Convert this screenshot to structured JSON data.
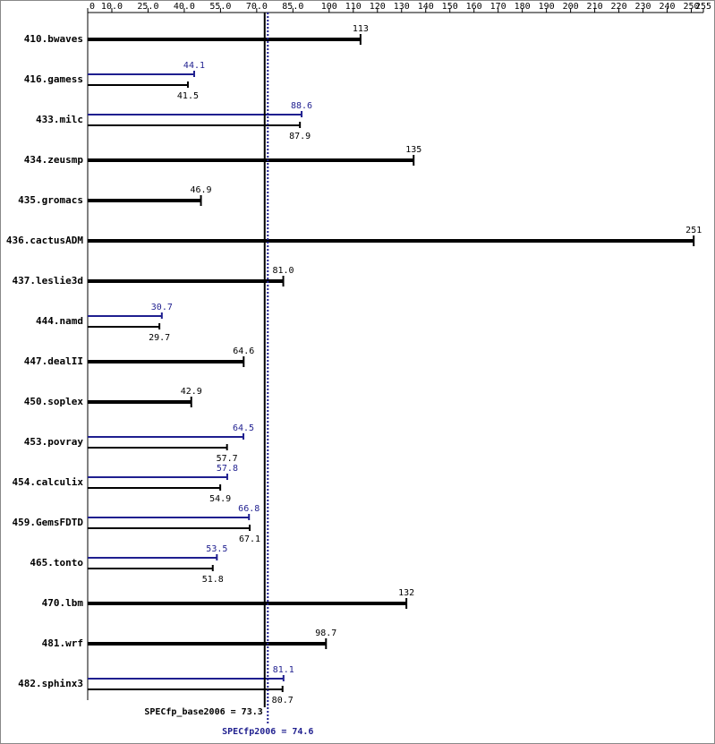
{
  "chart_data": {
    "type": "hbar",
    "categories": [
      "410.bwaves",
      "416.gamess",
      "433.milc",
      "434.zeusmp",
      "435.gromacs",
      "436.cactusADM",
      "437.leslie3d",
      "444.namd",
      "447.dealII",
      "450.soplex",
      "453.povray",
      "454.calculix",
      "459.GemsFDTD",
      "465.tonto",
      "470.lbm",
      "481.wrf",
      "482.sphinx3"
    ],
    "series": [
      {
        "color": "#000000",
        "values": [
          113,
          41.5,
          87.9,
          135,
          46.9,
          251,
          81.0,
          29.7,
          64.6,
          42.9,
          57.7,
          54.9,
          67.1,
          51.8,
          132,
          98.7,
          80.7
        ],
        "value_labels": [
          "113",
          "41.5",
          "87.9",
          "135",
          "46.9",
          "251",
          "81.0",
          "29.7",
          "64.6",
          "42.9",
          "57.7",
          "54.9",
          "67.1",
          "51.8",
          "132",
          "98.7",
          "80.7"
        ]
      },
      {
        "color": "#1f1f8f",
        "values": [
          null,
          44.1,
          88.6,
          null,
          null,
          null,
          null,
          30.7,
          null,
          null,
          64.5,
          57.8,
          66.8,
          53.5,
          null,
          null,
          81.1
        ],
        "value_labels": [
          null,
          "44.1",
          "88.6",
          null,
          null,
          null,
          null,
          "30.7",
          null,
          null,
          "64.5",
          "57.8",
          "66.8",
          "53.5",
          null,
          null,
          "81.1"
        ]
      }
    ],
    "xlim": [
      0,
      255
    ],
    "xticks": [
      0,
      {
        "value": 10,
        "label": "10.0"
      },
      {
        "value": 25,
        "label": "25.0"
      },
      {
        "value": 40,
        "label": "40.0"
      },
      {
        "value": 55,
        "label": "55.0"
      },
      {
        "value": 70,
        "label": "70.0"
      },
      {
        "value": 85,
        "label": "85.0"
      },
      100,
      110,
      120,
      130,
      140,
      150,
      160,
      170,
      180,
      190,
      200,
      210,
      220,
      230,
      240,
      250,
      255
    ],
    "reference_lines": [
      {
        "label": "SPECfp_base2006 = 73.3",
        "value": 73.3,
        "color": "#000000"
      },
      {
        "label": "SPECfp2006 = 74.6",
        "value": 74.6,
        "color": "#1f1f8f"
      }
    ]
  }
}
